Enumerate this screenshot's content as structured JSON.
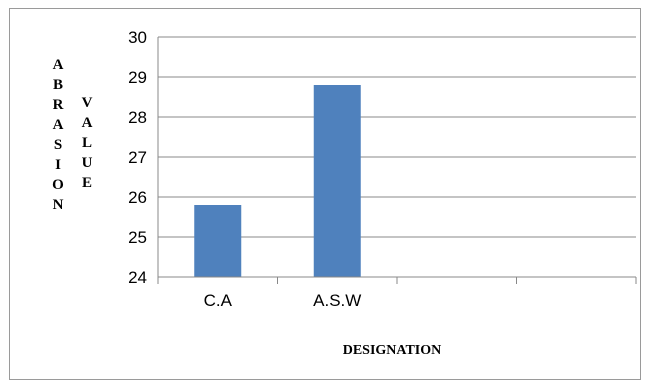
{
  "chart_data": {
    "type": "bar",
    "categories": [
      "C.A",
      "A.S.W",
      "",
      ""
    ],
    "values": [
      25.8,
      28.8,
      null,
      null
    ],
    "title": "",
    "xlabel": "DESIGNATION",
    "ylabel": "ABRASION VALUE",
    "ylabel_parts": [
      "ABRASION",
      "VALUE"
    ],
    "ylim": [
      24,
      30
    ],
    "yticks": [
      "24",
      "25",
      "26",
      "27",
      "28",
      "29",
      "30"
    ],
    "grid": true,
    "legend": "none",
    "bar_color": "#4F81BD"
  }
}
